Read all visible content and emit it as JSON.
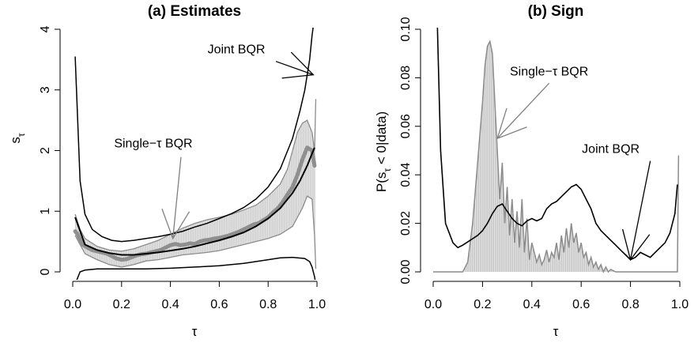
{
  "chart_data": [
    {
      "type": "line",
      "title": "(a) Estimates",
      "xlabel": "τ",
      "ylabel_main": "s",
      "ylabel_sub": "τ",
      "xlim": [
        0.0,
        1.0
      ],
      "ylim": [
        0,
        4
      ],
      "xticks": [
        "0.0",
        "0.2",
        "0.4",
        "0.6",
        "0.8",
        "1.0"
      ],
      "yticks": [
        "0",
        "1",
        "2",
        "3",
        "4"
      ],
      "annotations": [
        {
          "text": "Joint BQR",
          "x": 0.67,
          "y": 3.6,
          "arrow_to": [
            0.985,
            3.25
          ]
        },
        {
          "text": "Single−τ BQR",
          "x": 0.33,
          "y": 2.05,
          "arrow_to": [
            0.41,
            0.55
          ]
        }
      ],
      "series": [
        {
          "name": "Joint BQR",
          "kind": "mean",
          "x": [
            0.01,
            0.05,
            0.1,
            0.15,
            0.2,
            0.25,
            0.3,
            0.35,
            0.4,
            0.45,
            0.5,
            0.55,
            0.6,
            0.65,
            0.7,
            0.75,
            0.8,
            0.85,
            0.9,
            0.93,
            0.96,
            0.98,
            0.99
          ],
          "y": [
            0.9,
            0.45,
            0.36,
            0.31,
            0.28,
            0.28,
            0.3,
            0.32,
            0.35,
            0.38,
            0.42,
            0.47,
            0.52,
            0.58,
            0.65,
            0.75,
            0.88,
            1.05,
            1.3,
            1.5,
            1.75,
            1.95,
            2.05
          ]
        },
        {
          "name": "Joint BQR",
          "kind": "upper band",
          "x": [
            0.01,
            0.03,
            0.05,
            0.08,
            0.12,
            0.16,
            0.2,
            0.25,
            0.3,
            0.35,
            0.4,
            0.45,
            0.5,
            0.55,
            0.6,
            0.65,
            0.7,
            0.75,
            0.8,
            0.85,
            0.9,
            0.93,
            0.95,
            0.97,
            0.98,
            0.99,
            0.995
          ],
          "y": [
            3.55,
            1.5,
            0.95,
            0.7,
            0.58,
            0.52,
            0.5,
            0.52,
            0.55,
            0.58,
            0.62,
            0.67,
            0.74,
            0.8,
            0.88,
            0.96,
            1.06,
            1.2,
            1.4,
            1.7,
            2.2,
            2.65,
            3.0,
            3.5,
            3.9,
            4.2,
            4.6
          ]
        },
        {
          "name": "Joint BQR",
          "kind": "lower band",
          "x": [
            0.01,
            0.03,
            0.05,
            0.1,
            0.2,
            0.3,
            0.4,
            0.5,
            0.6,
            0.7,
            0.8,
            0.85,
            0.9,
            0.95,
            0.97,
            0.98,
            0.99,
            0.995
          ],
          "y": [
            -0.2,
            0.0,
            0.03,
            0.05,
            0.05,
            0.05,
            0.06,
            0.08,
            0.1,
            0.14,
            0.2,
            0.23,
            0.24,
            0.22,
            0.17,
            0.08,
            -0.08,
            -0.2
          ]
        },
        {
          "name": "Single−τ BQR",
          "kind": "mean",
          "x": [
            0.01,
            0.02,
            0.04,
            0.06,
            0.08,
            0.1,
            0.12,
            0.14,
            0.16,
            0.18,
            0.2,
            0.22,
            0.24,
            0.26,
            0.28,
            0.3,
            0.32,
            0.34,
            0.36,
            0.38,
            0.4,
            0.42,
            0.44,
            0.46,
            0.48,
            0.5,
            0.52,
            0.54,
            0.56,
            0.58,
            0.6,
            0.62,
            0.64,
            0.66,
            0.68,
            0.7,
            0.72,
            0.74,
            0.76,
            0.78,
            0.8,
            0.82,
            0.84,
            0.86,
            0.88,
            0.9,
            0.92,
            0.94,
            0.96,
            0.98,
            0.99
          ],
          "y": [
            0.67,
            0.62,
            0.45,
            0.4,
            0.36,
            0.34,
            0.32,
            0.3,
            0.26,
            0.22,
            0.2,
            0.21,
            0.24,
            0.27,
            0.29,
            0.3,
            0.32,
            0.34,
            0.36,
            0.4,
            0.44,
            0.46,
            0.44,
            0.45,
            0.47,
            0.46,
            0.5,
            0.52,
            0.53,
            0.55,
            0.56,
            0.58,
            0.6,
            0.63,
            0.66,
            0.7,
            0.74,
            0.78,
            0.8,
            0.85,
            0.9,
            0.98,
            1.05,
            1.15,
            1.28,
            1.4,
            1.6,
            1.85,
            2.05,
            2.0,
            1.75
          ]
        },
        {
          "name": "Single−τ BQR",
          "kind": "upper band",
          "x": [
            0.01,
            0.03,
            0.05,
            0.1,
            0.15,
            0.2,
            0.25,
            0.3,
            0.35,
            0.4,
            0.45,
            0.5,
            0.55,
            0.6,
            0.65,
            0.7,
            0.75,
            0.8,
            0.85,
            0.88,
            0.9,
            0.92,
            0.94,
            0.96,
            0.98,
            0.99,
            0.995
          ],
          "y": [
            0.95,
            0.7,
            0.55,
            0.42,
            0.36,
            0.34,
            0.38,
            0.45,
            0.52,
            0.62,
            0.72,
            0.8,
            0.86,
            0.9,
            0.95,
            1.02,
            1.1,
            1.25,
            1.45,
            1.7,
            2.0,
            2.3,
            2.45,
            2.5,
            2.3,
            2.0,
            2.85
          ]
        },
        {
          "name": "Single−τ BQR",
          "kind": "lower band",
          "x": [
            0.01,
            0.03,
            0.05,
            0.1,
            0.15,
            0.2,
            0.25,
            0.3,
            0.35,
            0.4,
            0.45,
            0.5,
            0.55,
            0.6,
            0.65,
            0.7,
            0.75,
            0.8,
            0.85,
            0.9,
            0.92,
            0.94,
            0.96,
            0.98,
            0.99,
            0.995
          ],
          "y": [
            0.6,
            0.45,
            0.3,
            0.2,
            0.12,
            0.08,
            0.12,
            0.18,
            0.2,
            0.24,
            0.28,
            0.3,
            0.32,
            0.35,
            0.4,
            0.45,
            0.5,
            0.55,
            0.62,
            0.75,
            0.9,
            1.05,
            1.25,
            1.2,
            0.6,
            0.05
          ]
        }
      ]
    },
    {
      "type": "line",
      "title": "(b) Sign",
      "xlabel": "τ",
      "ylabel_main": "P(s",
      "ylabel_sub": "τ",
      "ylabel_tail": " < 0|data)",
      "xlim": [
        0.0,
        1.0
      ],
      "ylim": [
        0.0,
        0.1
      ],
      "xticks": [
        "0.0",
        "0.2",
        "0.4",
        "0.6",
        "0.8",
        "1.0"
      ],
      "yticks": [
        "0.00",
        "0.02",
        "0.04",
        "0.06",
        "0.08",
        "0.10"
      ],
      "annotations": [
        {
          "text": "Single−τ BQR",
          "x": 0.47,
          "y": 0.081,
          "arrow_to": [
            0.26,
            0.055
          ]
        },
        {
          "text": "Joint BQR",
          "x": 0.72,
          "y": 0.049,
          "arrow_to": [
            0.8,
            0.005
          ]
        }
      ],
      "series": [
        {
          "name": "Joint BQR",
          "x": [
            0.01,
            0.02,
            0.03,
            0.05,
            0.08,
            0.1,
            0.12,
            0.15,
            0.18,
            0.2,
            0.22,
            0.24,
            0.26,
            0.28,
            0.3,
            0.32,
            0.34,
            0.36,
            0.38,
            0.4,
            0.42,
            0.44,
            0.46,
            0.48,
            0.5,
            0.52,
            0.54,
            0.56,
            0.58,
            0.6,
            0.62,
            0.64,
            0.66,
            0.68,
            0.7,
            0.72,
            0.74,
            0.76,
            0.78,
            0.8,
            0.82,
            0.84,
            0.86,
            0.88,
            0.9,
            0.92,
            0.94,
            0.96,
            0.98,
            0.99
          ],
          "y": [
            0.13,
            0.09,
            0.05,
            0.02,
            0.012,
            0.01,
            0.011,
            0.013,
            0.015,
            0.017,
            0.02,
            0.024,
            0.027,
            0.028,
            0.025,
            0.022,
            0.02,
            0.019,
            0.021,
            0.022,
            0.021,
            0.022,
            0.026,
            0.028,
            0.029,
            0.031,
            0.033,
            0.035,
            0.036,
            0.034,
            0.03,
            0.026,
            0.02,
            0.017,
            0.015,
            0.013,
            0.011,
            0.009,
            0.007,
            0.005,
            0.006,
            0.008,
            0.007,
            0.006,
            0.008,
            0.01,
            0.012,
            0.016,
            0.024,
            0.036
          ]
        },
        {
          "name": "Single−τ BQR",
          "x": [
            0.0,
            0.12,
            0.14,
            0.16,
            0.18,
            0.2,
            0.21,
            0.22,
            0.23,
            0.24,
            0.25,
            0.26,
            0.27,
            0.28,
            0.29,
            0.3,
            0.31,
            0.32,
            0.33,
            0.34,
            0.35,
            0.36,
            0.37,
            0.38,
            0.39,
            0.4,
            0.41,
            0.42,
            0.43,
            0.44,
            0.45,
            0.46,
            0.47,
            0.48,
            0.49,
            0.5,
            0.51,
            0.52,
            0.53,
            0.54,
            0.55,
            0.56,
            0.57,
            0.58,
            0.59,
            0.6,
            0.61,
            0.62,
            0.63,
            0.64,
            0.65,
            0.66,
            0.67,
            0.68,
            0.69,
            0.7,
            0.71,
            0.72,
            0.74,
            0.76,
            0.8,
            0.9,
            0.97,
            0.98,
            0.99,
            0.995
          ],
          "y": [
            0.0,
            0.0,
            0.004,
            0.02,
            0.045,
            0.07,
            0.085,
            0.093,
            0.095,
            0.09,
            0.07,
            0.05,
            0.03,
            0.045,
            0.02,
            0.035,
            0.015,
            0.03,
            0.012,
            0.025,
            0.01,
            0.03,
            0.008,
            0.022,
            0.005,
            0.012,
            0.008,
            0.004,
            0.007,
            0.003,
            0.005,
            0.009,
            0.004,
            0.008,
            0.006,
            0.012,
            0.005,
            0.015,
            0.008,
            0.018,
            0.01,
            0.02,
            0.012,
            0.016,
            0.008,
            0.012,
            0.006,
            0.008,
            0.003,
            0.006,
            0.002,
            0.004,
            0.001,
            0.003,
            0.0,
            0.002,
            0.0,
            0.001,
            0.0,
            0.0,
            0.0,
            0.0,
            0.0,
            0.0,
            0.0,
            0.048
          ]
        }
      ]
    }
  ]
}
